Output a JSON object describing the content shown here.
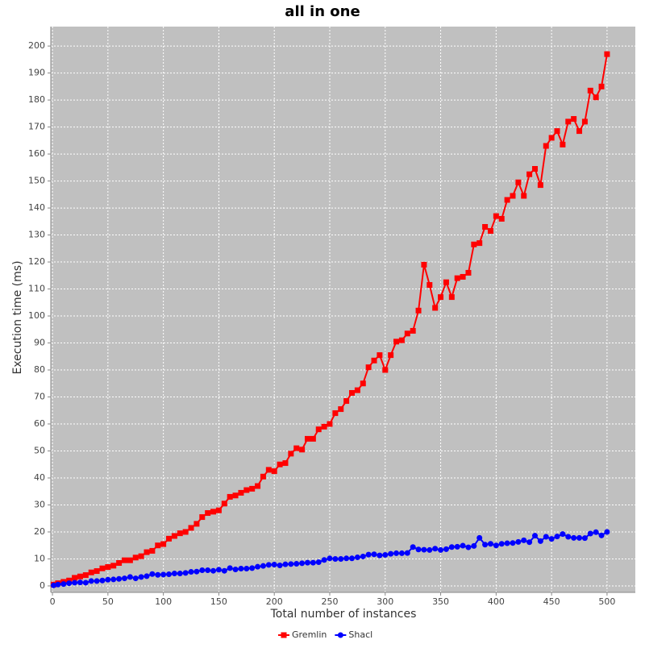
{
  "chart_data": {
    "type": "line",
    "title": "all in one",
    "x_label": "Total number of instances",
    "y_label": "Execution time (ms)",
    "x": [
      1,
      5,
      10,
      15,
      20,
      25,
      30,
      35,
      40,
      45,
      50,
      55,
      60,
      65,
      70,
      75,
      80,
      85,
      90,
      95,
      100,
      105,
      110,
      115,
      120,
      125,
      130,
      135,
      140,
      145,
      150,
      155,
      160,
      165,
      170,
      175,
      180,
      185,
      190,
      195,
      200,
      205,
      210,
      215,
      220,
      225,
      230,
      235,
      240,
      245,
      250,
      255,
      260,
      265,
      270,
      275,
      280,
      285,
      290,
      295,
      300,
      305,
      310,
      315,
      320,
      325,
      330,
      335,
      340,
      345,
      350,
      355,
      360,
      365,
      370,
      375,
      380,
      385,
      390,
      395,
      400,
      405,
      410,
      415,
      420,
      425,
      430,
      435,
      440,
      445,
      450,
      455,
      460,
      465,
      470,
      475,
      480,
      485,
      490,
      495,
      500
    ],
    "series": [
      {
        "name": "Gremlin",
        "color": "#ff0000",
        "marker": "square",
        "values": [
          0.5,
          1,
          1.5,
          2,
          3,
          3.5,
          4,
          5,
          5.5,
          6.5,
          7,
          7.5,
          8.5,
          9.5,
          9.5,
          10.5,
          11,
          12.5,
          13,
          15,
          15.5,
          17.5,
          18.5,
          19.5,
          20,
          21.5,
          23,
          25.5,
          27,
          27.5,
          28,
          30.5,
          33,
          33.5,
          34.5,
          35.5,
          36,
          37,
          40.5,
          43,
          42.5,
          45,
          45.5,
          49,
          51,
          50.5,
          54.5,
          54.5,
          58,
          59,
          60,
          64,
          65.5,
          68.5,
          71.5,
          72.5,
          75,
          81,
          83.5,
          85.5,
          80,
          85.5,
          90.5,
          91,
          93.5,
          94.5,
          102,
          119,
          111.5,
          103,
          107,
          112.5,
          107,
          114,
          114.5,
          116,
          126.5,
          127,
          133,
          131.5,
          137,
          136,
          143,
          144.5,
          149.5,
          144.5,
          152.5,
          154.5,
          148.5,
          163,
          166,
          168.5,
          163.5,
          172,
          173,
          168.5,
          172,
          183.5,
          181,
          185,
          197
        ]
      },
      {
        "name": "Shacl",
        "color": "#0000ff",
        "marker": "circle",
        "values": [
          0.2,
          0.5,
          0.7,
          1,
          1.2,
          1.3,
          1.2,
          1.8,
          1.8,
          2,
          2.3,
          2.4,
          2.6,
          2.8,
          3.3,
          2.8,
          3.3,
          3.6,
          4.4,
          4.1,
          4.2,
          4.3,
          4.6,
          4.6,
          4.8,
          5.2,
          5.3,
          5.8,
          5.8,
          5.6,
          6,
          5.6,
          6.6,
          6.1,
          6.4,
          6.4,
          6.6,
          7.1,
          7.4,
          7.8,
          7.9,
          7.6,
          8,
          8.1,
          8.2,
          8.4,
          8.6,
          8.6,
          8.8,
          9.6,
          10.2,
          10,
          10,
          10.2,
          10.2,
          10.6,
          10.9,
          11.6,
          11.7,
          11.3,
          11.5,
          11.9,
          12.1,
          12.1,
          12.2,
          14.4,
          13.5,
          13.4,
          13.3,
          13.8,
          13.3,
          13.6,
          14.4,
          14.5,
          14.9,
          14.3,
          14.8,
          17.8,
          15.3,
          15.6,
          15,
          15.6,
          15.8,
          15.9,
          16.3,
          16.9,
          16.2,
          18.6,
          16.6,
          18.2,
          17.4,
          18.3,
          19.2,
          18.2,
          17.8,
          17.8,
          17.7,
          19.4,
          19.9,
          18.7,
          20
        ]
      }
    ],
    "xlim": [
      -1.5,
      525.5
    ],
    "ylim": [
      -2.4,
      207.2
    ],
    "xticks": [
      0,
      50,
      100,
      150,
      200,
      250,
      300,
      350,
      400,
      450,
      500
    ],
    "yticks": [
      0,
      10,
      20,
      30,
      40,
      50,
      60,
      70,
      80,
      90,
      100,
      110,
      120,
      130,
      140,
      150,
      160,
      170,
      180,
      190,
      200
    ],
    "grid": true,
    "legend": "bottom",
    "plot_background": "#c0c0c0"
  }
}
